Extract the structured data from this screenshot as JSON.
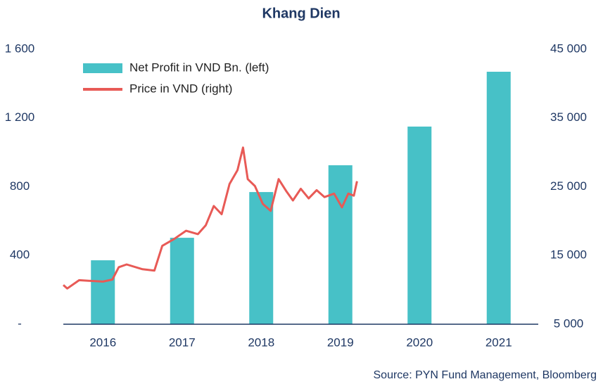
{
  "chart_data": {
    "type": "bar",
    "title": "Khang Dien",
    "source": "Source: PYN Fund Management, Bloomberg",
    "categories": [
      "2016",
      "2017",
      "2018",
      "2019",
      "2020",
      "2021"
    ],
    "xlim": [
      2016,
      2022
    ],
    "ylim": [
      0,
      1600
    ],
    "yticks": [
      {
        "value": 0,
        "label": "-"
      },
      400,
      800,
      {
        "value": 1200,
        "label": "1 200"
      },
      {
        "value": 1600,
        "label": "1 600"
      }
    ],
    "y2lim": [
      5000,
      45000
    ],
    "y2ticks": [
      {
        "value": 5000,
        "label": "5 000"
      },
      {
        "value": 15000,
        "label": "15 000"
      },
      {
        "value": 25000,
        "label": "25 000"
      },
      {
        "value": 35000,
        "label": "35 000"
      },
      {
        "value": 45000,
        "label": "45 000"
      }
    ],
    "legend": "upper left",
    "series": [
      {
        "name": "Net Profit in VND Bn. (left)",
        "type": "bar",
        "color": "#47c1c7",
        "values": [
          372,
          503,
          769,
          925,
          1150,
          1469
        ]
      },
      {
        "name": "Price in VND (right)",
        "type": "line",
        "axis": "y2",
        "color": "#e85a56",
        "x": [
          2016.0,
          2016.05,
          2016.2,
          2016.5,
          2016.62,
          2016.7,
          2016.8,
          2017.0,
          2017.15,
          2017.25,
          2017.4,
          2017.55,
          2017.7,
          2017.8,
          2017.9,
          2018.0,
          2018.1,
          2018.2,
          2018.27,
          2018.33,
          2018.42,
          2018.52,
          2018.62,
          2018.72,
          2018.82,
          2018.9,
          2019.0,
          2019.1,
          2019.2,
          2019.3,
          2019.42,
          2019.52,
          2019.6,
          2019.67,
          2019.71
        ],
        "values": [
          10700,
          10200,
          11400,
          11200,
          11500,
          13300,
          13700,
          13000,
          12800,
          16400,
          17400,
          18600,
          18100,
          19400,
          22200,
          21000,
          25400,
          27400,
          30700,
          26100,
          25100,
          22500,
          21500,
          26100,
          24300,
          23000,
          24700,
          23300,
          24500,
          23500,
          24000,
          22000,
          24000,
          23700,
          25800
        ]
      }
    ]
  }
}
